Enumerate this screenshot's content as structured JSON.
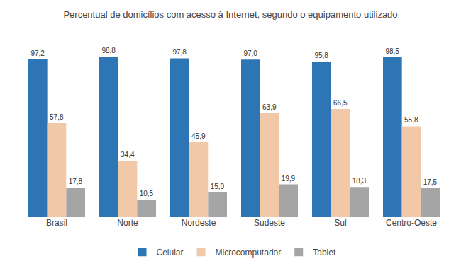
{
  "chart_data": {
    "type": "bar",
    "title": "Percentual de domicílios com acesso à Internet, segundo o equipamento utilizado",
    "categories": [
      "Brasil",
      "Norte",
      "Nordeste",
      "Sudeste",
      "Sul",
      "Centro-Oeste"
    ],
    "series": [
      {
        "name": "Celular",
        "color": "#2E75B6",
        "values": [
          97.2,
          98.8,
          97.8,
          97.0,
          95.8,
          98.5
        ],
        "value_labels": [
          "97,2",
          "98,8",
          "97,8",
          "97,0",
          "95,8",
          "98,5"
        ]
      },
      {
        "name": "Microcomputador",
        "color": "#F2C9A8",
        "values": [
          57.8,
          34.4,
          45.9,
          63.9,
          66.5,
          55.8
        ],
        "value_labels": [
          "57,8",
          "34,4",
          "45,9",
          "63,9",
          "66,5",
          "55,8"
        ]
      },
      {
        "name": "Tablet",
        "color": "#A5A5A5",
        "values": [
          17.8,
          10.5,
          15.0,
          19.9,
          18.3,
          17.5
        ],
        "value_labels": [
          "17,8",
          "10,5",
          "15,0",
          "19,9",
          "18,3",
          "17,5"
        ]
      }
    ],
    "ylim": [
      0,
      112
    ],
    "data_labels": true,
    "tick_labels": "x",
    "grid": false,
    "legend": "bottom"
  }
}
